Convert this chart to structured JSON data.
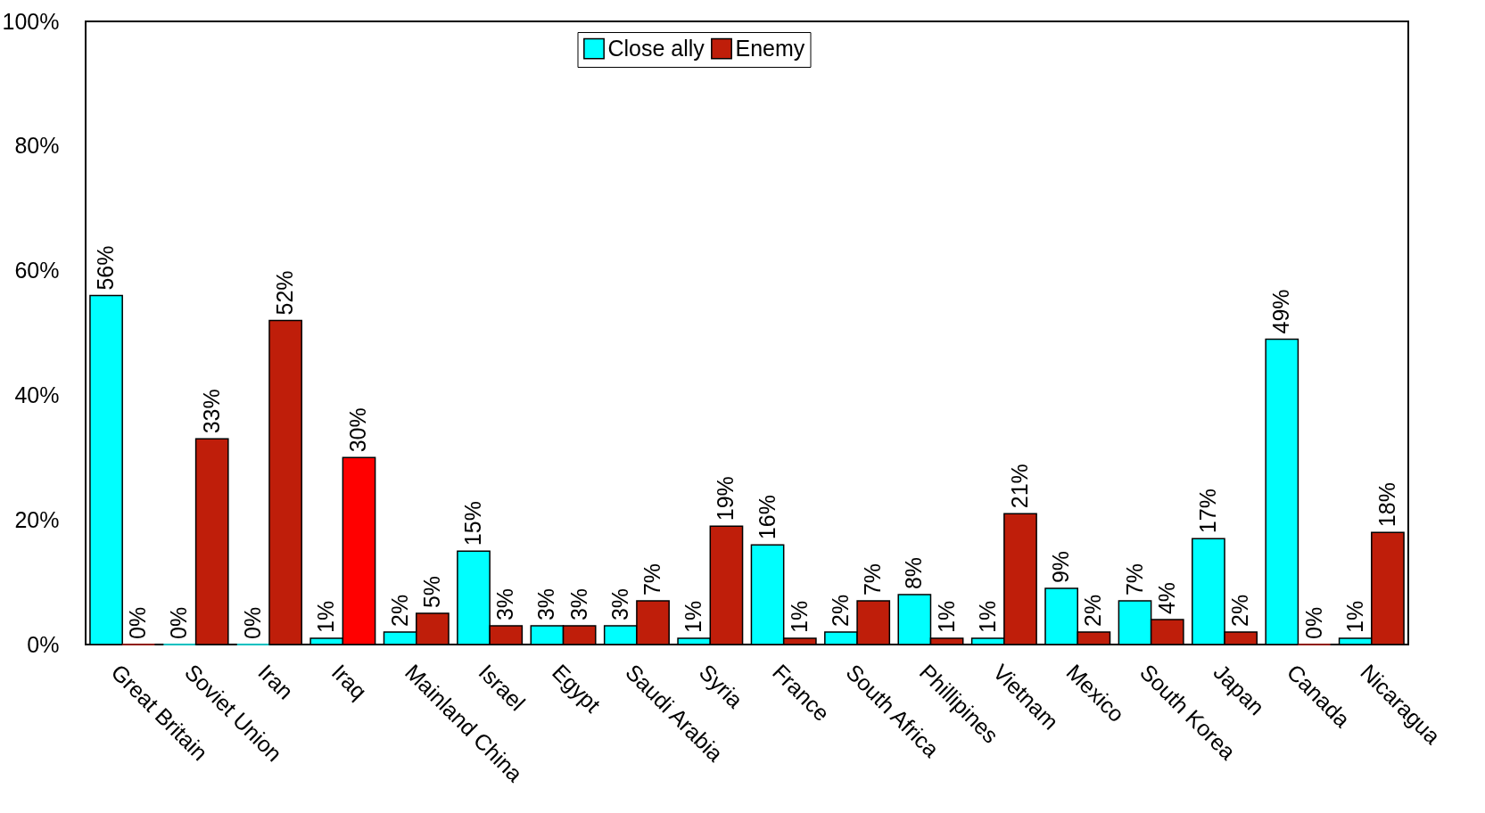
{
  "chart_data": {
    "type": "bar",
    "categories": [
      "Great Britain",
      "Soviet Union",
      "Iran",
      "Iraq",
      "Mainland China",
      "Israel",
      "Egypt",
      "Saudi Arabia",
      "Syria",
      "France",
      "South Africa",
      "Phillipines",
      "Vietnam",
      "Mexico",
      "South Korea",
      "Japan",
      "Canada",
      "Nicaragua"
    ],
    "series": [
      {
        "name": "Close ally",
        "color": "#00ffff",
        "values": [
          56,
          0,
          0,
          1,
          2,
          15,
          3,
          3,
          1,
          16,
          2,
          8,
          1,
          9,
          7,
          17,
          49,
          1
        ],
        "value_labels": [
          "56%",
          "0%",
          "0%",
          "1%",
          "2%",
          "15%",
          "3%",
          "3%",
          "1%",
          "16%",
          "2%",
          "8%",
          "1%",
          "9%",
          "7%",
          "17%",
          "49%",
          "1%"
        ]
      },
      {
        "name": "Enemy",
        "color": "#bf1e0a",
        "colors": [
          "#bf1e0a",
          "#bf1e0a",
          "#bf1e0a",
          "#ff0000",
          "#bf1e0a",
          "#bf1e0a",
          "#bf1e0a",
          "#bf1e0a",
          "#bf1e0a",
          "#bf1e0a",
          "#bf1e0a",
          "#bf1e0a",
          "#bf1e0a",
          "#bf1e0a",
          "#bf1e0a",
          "#bf1e0a",
          "#bf1e0a",
          "#bf1e0a"
        ],
        "values": [
          0,
          33,
          52,
          30,
          5,
          3,
          3,
          7,
          19,
          1,
          7,
          1,
          21,
          2,
          4,
          2,
          0,
          18
        ],
        "value_labels": [
          "0%",
          "33%",
          "52%",
          "30%",
          "5%",
          "3%",
          "3%",
          "7%",
          "19%",
          "1%",
          "7%",
          "1%",
          "21%",
          "2%",
          "4%",
          "2%",
          "0%",
          "18%"
        ]
      }
    ],
    "ylim": [
      0,
      100
    ],
    "yticks": [
      {
        "value": 0,
        "label": "0%"
      },
      {
        "value": 20,
        "label": "20%"
      },
      {
        "value": 40,
        "label": "40%"
      },
      {
        "value": 60,
        "label": "60%"
      },
      {
        "value": 80,
        "label": "80%"
      },
      {
        "value": 100,
        "label": "100%"
      }
    ],
    "legend": "top"
  }
}
